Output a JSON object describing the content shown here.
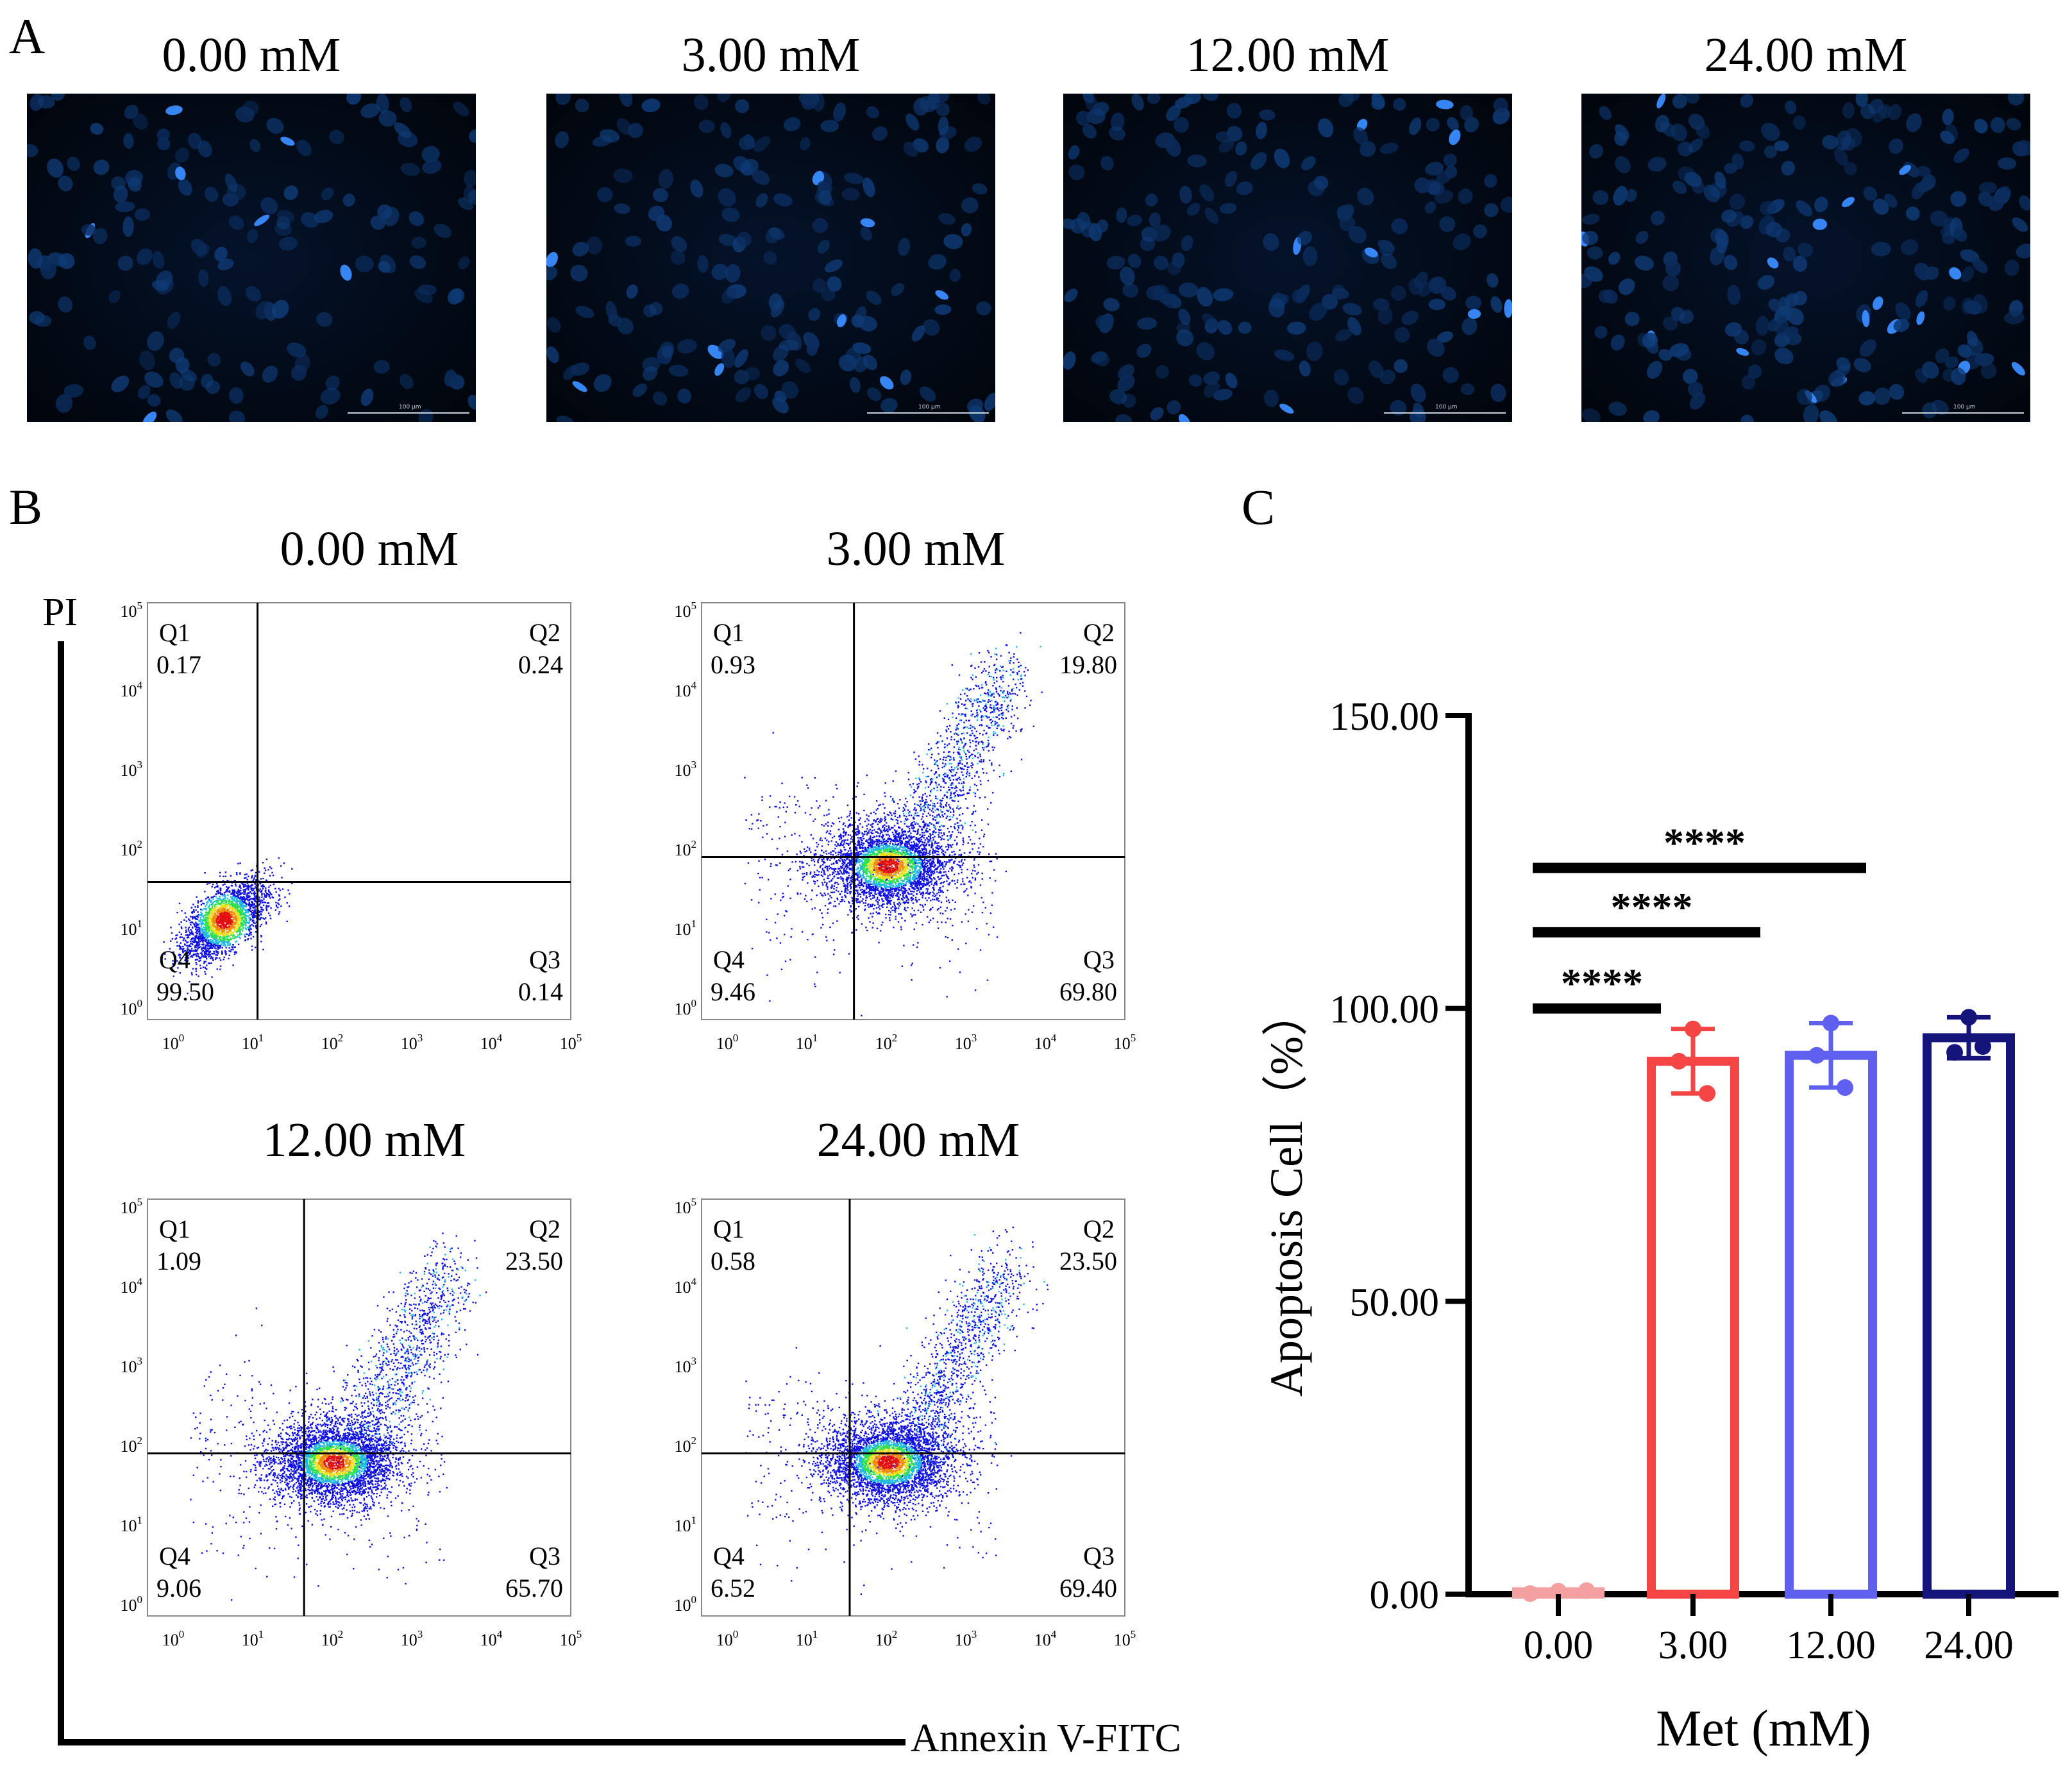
{
  "panels": {
    "a": {
      "letter": "A"
    },
    "b": {
      "letter": "B"
    },
    "c": {
      "letter": "C"
    }
  },
  "microscopy": {
    "images": [
      {
        "title": "0.00 mM",
        "scale": "100 μm",
        "seed": 11
      },
      {
        "title": "3.00 mM",
        "scale": "100 μm",
        "seed": 23
      },
      {
        "title": "12.00 mM",
        "scale": "100 μm",
        "seed": 37
      },
      {
        "title": "24.00 mM",
        "scale": "100 μm",
        "seed": 53
      }
    ]
  },
  "flow": {
    "y_label": "PI",
    "x_label": "Annexin V-FITC",
    "plots": [
      {
        "title": "0.00 mM",
        "q1": {
          "name": "Q1",
          "value": "0.17"
        },
        "q2": {
          "name": "Q2",
          "value": "0.24"
        },
        "q3": {
          "name": "Q3",
          "value": "0.14"
        },
        "q4": {
          "name": "Q4",
          "value": "99.50"
        }
      },
      {
        "title": "3.00 mM",
        "q1": {
          "name": "Q1",
          "value": "0.93"
        },
        "q2": {
          "name": "Q2",
          "value": "19.80"
        },
        "q3": {
          "name": "Q3",
          "value": "69.80"
        },
        "q4": {
          "name": "Q4",
          "value": "9.46"
        }
      },
      {
        "title": "12.00 mM",
        "q1": {
          "name": "Q1",
          "value": "1.09"
        },
        "q2": {
          "name": "Q2",
          "value": "23.50"
        },
        "q3": {
          "name": "Q3",
          "value": "65.70"
        },
        "q4": {
          "name": "Q4",
          "value": "9.06"
        }
      },
      {
        "title": "24.00 mM",
        "q1": {
          "name": "Q1",
          "value": "0.58"
        },
        "q2": {
          "name": "Q2",
          "value": "23.50"
        },
        "q3": {
          "name": "Q3",
          "value": "69.40"
        },
        "q4": {
          "name": "Q4",
          "value": "6.52"
        }
      }
    ],
    "tick_base": "10",
    "tick_exponents": [
      "0",
      "1",
      "2",
      "3",
      "4",
      "5"
    ]
  },
  "chart_data": {
    "type": "bar",
    "title": "",
    "xlabel": "Met (mM)",
    "ylabel": "Apoptosis Cell（%）",
    "categories": [
      "0.00",
      "3.00",
      "12.00",
      "24.00"
    ],
    "values": [
      0.4,
      91.0,
      92.0,
      95.0
    ],
    "errors": [
      0.3,
      5.5,
      5.5,
      3.5
    ],
    "points": [
      [
        0.1,
        0.5,
        0.6
      ],
      [
        96.5,
        91.0,
        85.5
      ],
      [
        97.5,
        92.0,
        86.5
      ],
      [
        98.5,
        92.5,
        93.5
      ]
    ],
    "colors": [
      "#f4a0a0",
      "#f54545",
      "#6060f0",
      "#14147a"
    ],
    "ylim": [
      0,
      150
    ],
    "yticks": [
      "0.00",
      "50.00",
      "100.00",
      "150.00"
    ],
    "significance": [
      {
        "from": "0.00",
        "to": "3.00",
        "label": "****"
      },
      {
        "from": "0.00",
        "to": "12.00",
        "label": "****"
      },
      {
        "from": "0.00",
        "to": "24.00",
        "label": "****"
      }
    ]
  }
}
